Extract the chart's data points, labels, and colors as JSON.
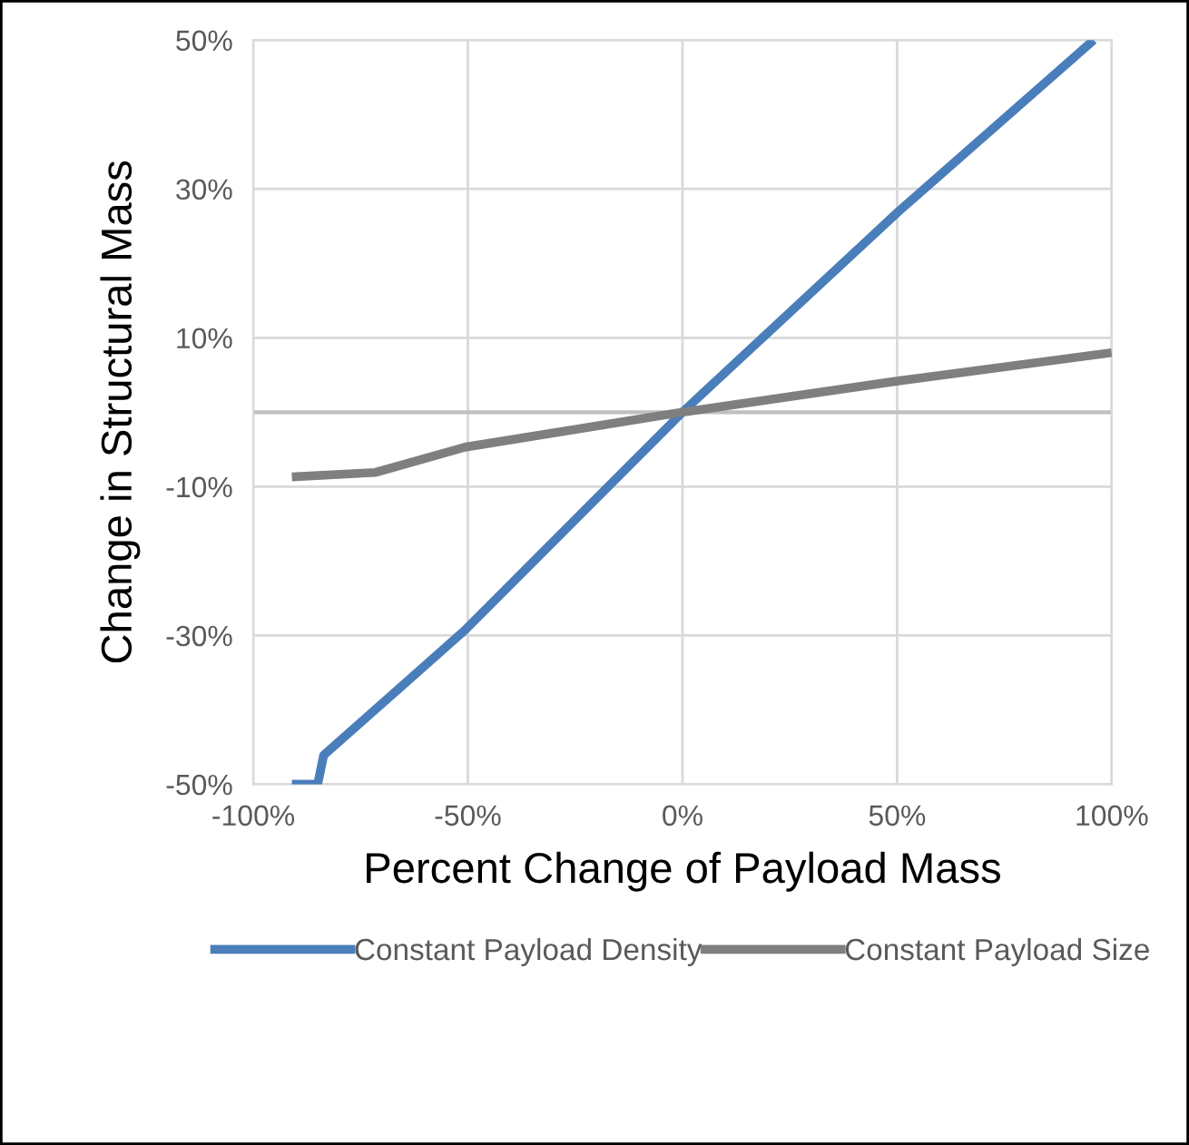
{
  "chart_data": {
    "type": "line",
    "xlabel": "Percent Change of Payload Mass",
    "ylabel": "Change in Structural Mass",
    "series": [
      {
        "name": "Constant Payload Density",
        "color": "#4a7ebb",
        "x": [
          -91,
          -85,
          -83.6,
          -50.7,
          0,
          50.2,
          95.8
        ],
        "values": [
          -50,
          -50,
          -46.1,
          -29.3,
          0,
          26.9,
          50
        ]
      },
      {
        "name": "Constant Payload Size",
        "color": "#7f7f7f",
        "x": [
          -91,
          -71.6,
          -50.7,
          0,
          50.2,
          100
        ],
        "values": [
          -8.7,
          -8.1,
          -4.7,
          0,
          4.2,
          8.0
        ]
      }
    ],
    "xlim": [
      -100,
      100
    ],
    "xticks": [
      {
        "value": -100,
        "label": "-100%"
      },
      {
        "value": -50,
        "label": "-50%"
      },
      {
        "value": 0,
        "label": "0%"
      },
      {
        "value": 50,
        "label": "50%"
      },
      {
        "value": 100,
        "label": "100%"
      }
    ],
    "ylim": [
      -50,
      50
    ],
    "yticks": [
      {
        "value": -50,
        "label": "-50%"
      },
      {
        "value": -30,
        "label": "-30%"
      },
      {
        "value": -10,
        "label": "-10%"
      },
      {
        "value": 10,
        "label": "10%"
      },
      {
        "value": 30,
        "label": "30%"
      },
      {
        "value": 50,
        "label": "50%"
      }
    ],
    "ref_lines": [
      {
        "axis": "y",
        "value": 0,
        "color": "#bfbfbf"
      }
    ],
    "grid": true,
    "legend": "bottom",
    "marker": "none",
    "line_style": "solid"
  }
}
